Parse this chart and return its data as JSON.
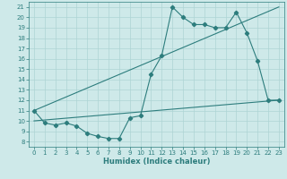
{
  "bg_color": "#cee9e9",
  "grid_color": "#aed4d4",
  "line_color": "#2d7d7d",
  "xlabel": "Humidex (Indice chaleur)",
  "xlim": [
    -0.5,
    23.5
  ],
  "ylim": [
    7.5,
    21.5
  ],
  "yticks": [
    8,
    9,
    10,
    11,
    12,
    13,
    14,
    15,
    16,
    17,
    18,
    19,
    20,
    21
  ],
  "xticks": [
    0,
    1,
    2,
    3,
    4,
    5,
    6,
    7,
    8,
    9,
    10,
    11,
    12,
    13,
    14,
    15,
    16,
    17,
    18,
    19,
    20,
    21,
    22,
    23
  ],
  "series1_x": [
    0,
    1,
    2,
    3,
    4,
    5,
    6,
    7,
    8,
    9,
    10,
    11,
    12,
    13,
    14,
    15,
    16,
    17,
    18,
    19,
    20,
    21,
    22,
    23
  ],
  "series1_y": [
    11.0,
    9.8,
    9.6,
    9.8,
    9.5,
    8.8,
    8.5,
    8.3,
    8.3,
    10.3,
    10.5,
    14.5,
    16.3,
    21.0,
    20.0,
    19.3,
    19.3,
    19.0,
    19.0,
    20.5,
    18.5,
    15.8,
    12.0,
    12.0
  ],
  "series2_x": [
    0,
    23
  ],
  "series2_y": [
    11.0,
    21.0
  ],
  "series3_x": [
    0,
    23
  ],
  "series3_y": [
    10.0,
    12.0
  ],
  "tick_fontsize": 5.0,
  "xlabel_fontsize": 6.0,
  "lw": 0.8,
  "ms": 2.2
}
